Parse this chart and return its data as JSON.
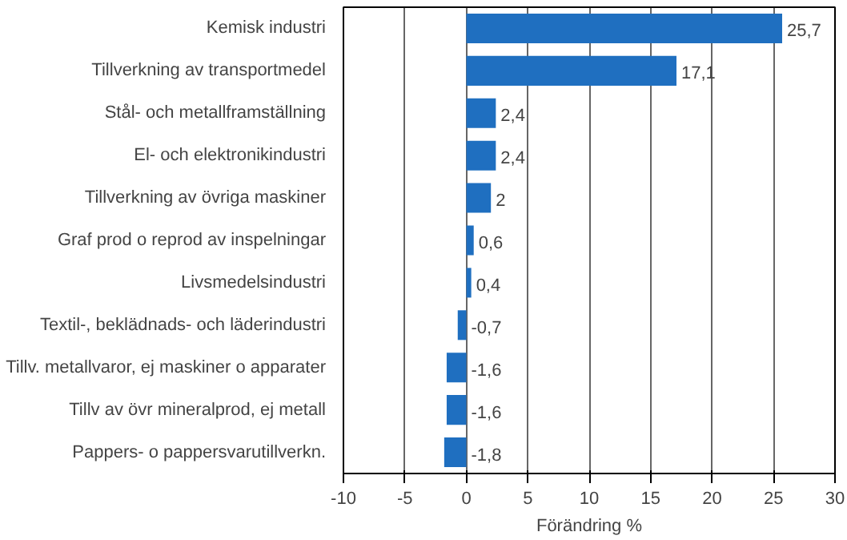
{
  "chart_data": {
    "type": "bar",
    "orientation": "horizontal",
    "xlabel": "Förändring %",
    "categories": [
      "Kemisk industri",
      "Tillverkning av transportmedel",
      "Stål- och metallframställning",
      "El- och elektronikindustri",
      "Tillverkning av övriga maskiner",
      "Graf prod o reprod av inspelningar",
      "Livsmedelsindustri",
      "Textil-, beklädnads- och läderindustri",
      "Tillv. metallvaror, ej maskiner o apparater",
      "Tillv av övr mineralprod, ej metall",
      "Pappers- o pappersvarutillverkn."
    ],
    "values": [
      25.7,
      17.1,
      2.4,
      2.4,
      2,
      0.6,
      0.4,
      -0.7,
      -1.6,
      -1.6,
      -1.8
    ],
    "value_labels": [
      "25,7",
      "17,1",
      "2,4",
      "2,4",
      "2",
      "0,6",
      "0,4",
      "-0,7",
      "-1,6",
      "-1,6",
      "-1,8"
    ],
    "color": "#1f6fc0",
    "xlim": [
      -10,
      30
    ],
    "xticks": [
      -10,
      -5,
      0,
      5,
      10,
      15,
      20,
      25,
      30
    ],
    "grid": "x"
  }
}
